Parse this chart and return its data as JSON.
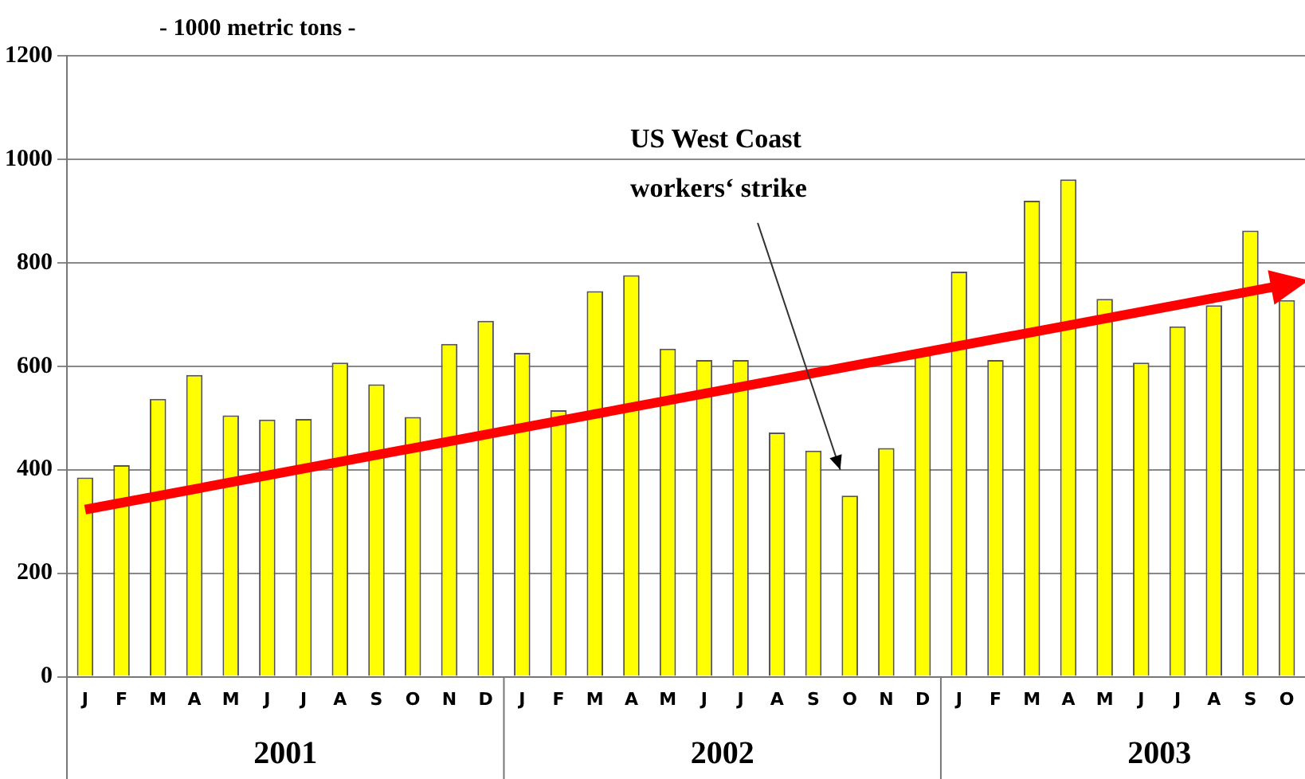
{
  "chart_data": {
    "type": "bar",
    "ylabel": "- 1000 metric tons -",
    "categories": [
      "J",
      "F",
      "M",
      "A",
      "M",
      "J",
      "J",
      "A",
      "S",
      "O",
      "N",
      "D",
      "J",
      "F",
      "M",
      "A",
      "M",
      "J",
      "J",
      "A",
      "S",
      "O",
      "N",
      "D",
      "J",
      "F",
      "M",
      "A",
      "M",
      "J",
      "J",
      "A",
      "S",
      "O"
    ],
    "series": [
      {
        "color": "#ffff00",
        "values": [
          385,
          409,
          537,
          583,
          505,
          497,
          498,
          607,
          565,
          502,
          643,
          688,
          626,
          515,
          745,
          776,
          634,
          612,
          612,
          472,
          437,
          350,
          442,
          622,
          783,
          612,
          920,
          961,
          730,
          607,
          677,
          718,
          862,
          728
        ]
      },
      {
        "type": "line",
        "color": "#ff0000",
        "values": [
          323,
          null,
          null,
          null,
          null,
          null,
          null,
          null,
          null,
          null,
          null,
          null,
          null,
          null,
          null,
          null,
          null,
          null,
          null,
          null,
          null,
          null,
          null,
          null,
          null,
          null,
          null,
          null,
          null,
          null,
          null,
          null,
          null,
          758
        ]
      }
    ],
    "ylim": [
      0,
      1200
    ],
    "yticks": [
      0,
      200,
      400,
      600,
      800,
      1000,
      1200
    ],
    "grid": "y",
    "legend": false,
    "annotations": [
      "US West Coast\nworkers‘ strike",
      "2001",
      "2002",
      "2003"
    ]
  }
}
